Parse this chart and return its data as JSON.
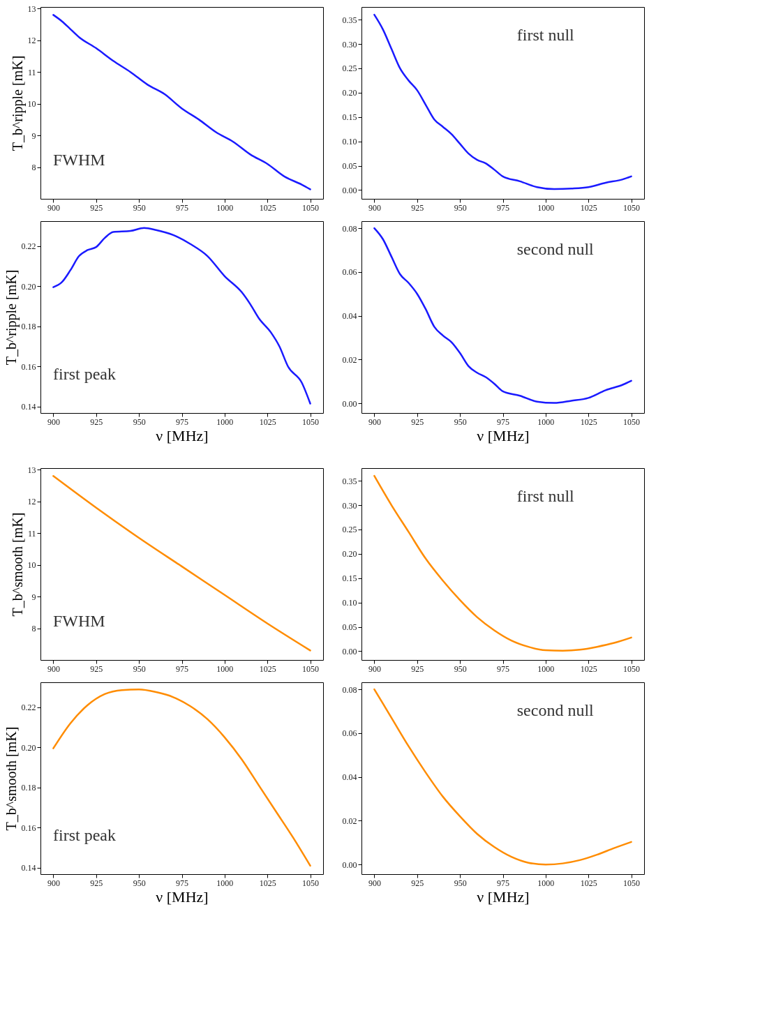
{
  "chart_data": [
    {
      "type": "line",
      "ylabel": "T_b^ripple [mK]",
      "annotations": [
        "FWHM"
      ],
      "x": [
        900,
        905,
        910,
        915,
        925,
        935,
        945,
        955,
        965,
        975,
        985,
        995,
        1005,
        1015,
        1025,
        1035,
        1045,
        1050
      ],
      "series": [
        {
          "color": "#1a1aff",
          "values": [
            12.8,
            12.6,
            12.35,
            12.1,
            11.75,
            11.35,
            11.0,
            10.6,
            10.3,
            9.85,
            9.5,
            9.1,
            8.8,
            8.4,
            8.1,
            7.7,
            7.45,
            7.3
          ]
        }
      ],
      "xlim": [
        892.5,
        1057.5
      ],
      "xticks": [
        900,
        925,
        950,
        975,
        1000,
        1025,
        1050
      ],
      "ylim": [
        7.0,
        13.05
      ],
      "yticks": [
        8,
        9,
        10,
        11,
        12,
        13
      ]
    },
    {
      "type": "line",
      "annotations": [
        "first null"
      ],
      "x": [
        900,
        905,
        910,
        915,
        920,
        925,
        930,
        935,
        940,
        945,
        950,
        955,
        960,
        965,
        970,
        975,
        985,
        995,
        1005,
        1015,
        1025,
        1035,
        1045,
        1050
      ],
      "series": [
        {
          "color": "#1a1aff",
          "values": [
            0.36,
            0.33,
            0.29,
            0.25,
            0.225,
            0.205,
            0.175,
            0.145,
            0.13,
            0.115,
            0.095,
            0.075,
            0.062,
            0.055,
            0.042,
            0.028,
            0.018,
            0.006,
            0.002,
            0.003,
            0.006,
            0.015,
            0.022,
            0.028
          ]
        }
      ],
      "xlim": [
        892.5,
        1057.5
      ],
      "xticks": [
        900,
        925,
        950,
        975,
        1000,
        1025,
        1050
      ],
      "ylim": [
        -0.018,
        0.376
      ],
      "yticks": [
        {
          "value": 0,
          "label": "0.00"
        },
        0.05,
        {
          "value": 0.1,
          "label": "0.10"
        },
        0.15,
        {
          "value": 0.2,
          "label": "0.20"
        },
        0.25,
        {
          "value": 0.3,
          "label": "0.30"
        },
        0.35
      ]
    },
    {
      "type": "line",
      "ylabel": "T_b^ripple [mK]",
      "xlabel": "ν [MHz]",
      "annotations": [
        "first peak"
      ],
      "x": [
        900,
        905,
        910,
        915,
        920,
        925,
        930,
        935,
        945,
        953,
        960,
        970,
        980,
        990,
        1000,
        1010,
        1015,
        1020,
        1027,
        1032,
        1037,
        1045,
        1050
      ],
      "series": [
        {
          "color": "#1a1aff",
          "values": [
            0.1995,
            0.202,
            0.208,
            0.215,
            0.218,
            0.2195,
            0.224,
            0.227,
            0.2275,
            0.229,
            0.228,
            0.2255,
            0.221,
            0.215,
            0.205,
            0.197,
            0.191,
            0.184,
            0.177,
            0.17,
            0.16,
            0.152,
            0.1415
          ]
        }
      ],
      "xlim": [
        892.5,
        1057.5
      ],
      "xticks": [
        900,
        925,
        950,
        975,
        1000,
        1025,
        1050
      ],
      "ylim": [
        0.1368,
        0.2324
      ],
      "yticks": [
        0.14,
        0.16,
        0.18,
        {
          "value": 0.2,
          "label": "0.20"
        },
        0.22
      ]
    },
    {
      "type": "line",
      "xlabel": "ν [MHz]",
      "annotations": [
        "second null"
      ],
      "x": [
        900,
        905,
        910,
        915,
        920,
        925,
        930,
        935,
        940,
        945,
        950,
        955,
        960,
        965,
        970,
        975,
        985,
        995,
        1005,
        1015,
        1025,
        1035,
        1045,
        1050
      ],
      "series": [
        {
          "color": "#1a1aff",
          "values": [
            0.08,
            0.075,
            0.067,
            0.059,
            0.055,
            0.05,
            0.043,
            0.035,
            0.031,
            0.028,
            0.023,
            0.017,
            0.014,
            0.012,
            0.009,
            0.0055,
            0.0035,
            0.0008,
            0.0002,
            0.0012,
            0.0025,
            0.006,
            0.0085,
            0.0103
          ]
        }
      ],
      "xlim": [
        892.5,
        1057.5
      ],
      "xticks": [
        900,
        925,
        950,
        975,
        1000,
        1025,
        1050
      ],
      "ylim": [
        -0.0044,
        0.0832
      ],
      "yticks": [
        {
          "value": 0,
          "label": "0.00"
        },
        0.02,
        0.04,
        0.06,
        0.08
      ]
    },
    {
      "type": "line",
      "ylabel": "T_b^smooth [mK]",
      "annotations": [
        "FWHM"
      ],
      "x": [
        900,
        925,
        950,
        975,
        1000,
        1025,
        1050
      ],
      "series": [
        {
          "color": "#ff8c00",
          "values": [
            12.8,
            11.8,
            10.85,
            9.95,
            9.05,
            8.15,
            7.3
          ]
        }
      ],
      "xlim": [
        892.5,
        1057.5
      ],
      "xticks": [
        900,
        925,
        950,
        975,
        1000,
        1025,
        1050
      ],
      "ylim": [
        7.0,
        13.05
      ],
      "yticks": [
        8,
        9,
        10,
        11,
        12,
        13
      ]
    },
    {
      "type": "line",
      "annotations": [
        "first null"
      ],
      "x": [
        900,
        910,
        920,
        930,
        940,
        950,
        960,
        970,
        980,
        990,
        1000,
        1010,
        1020,
        1030,
        1040,
        1050
      ],
      "series": [
        {
          "color": "#ff8c00",
          "values": [
            0.36,
            0.3,
            0.245,
            0.19,
            0.145,
            0.105,
            0.07,
            0.043,
            0.022,
            0.009,
            0.002,
            0.001,
            0.003,
            0.009,
            0.017,
            0.028
          ]
        }
      ],
      "xlim": [
        892.5,
        1057.5
      ],
      "xticks": [
        900,
        925,
        950,
        975,
        1000,
        1025,
        1050
      ],
      "ylim": [
        -0.018,
        0.376
      ],
      "yticks": [
        {
          "value": 0,
          "label": "0.00"
        },
        0.05,
        {
          "value": 0.1,
          "label": "0.10"
        },
        0.15,
        {
          "value": 0.2,
          "label": "0.20"
        },
        0.25,
        {
          "value": 0.3,
          "label": "0.30"
        },
        0.35
      ]
    },
    {
      "type": "line",
      "ylabel": "T_b^smooth [mK]",
      "xlabel": "ν [MHz]",
      "annotations": [
        "first peak"
      ],
      "x": [
        900,
        910,
        920,
        930,
        940,
        950,
        960,
        970,
        980,
        990,
        1000,
        1010,
        1020,
        1030,
        1040,
        1050
      ],
      "series": [
        {
          "color": "#ff8c00",
          "values": [
            0.1995,
            0.212,
            0.221,
            0.2265,
            0.2285,
            0.2288,
            0.2275,
            0.225,
            0.2205,
            0.214,
            0.205,
            0.194,
            0.181,
            0.168,
            0.155,
            0.141
          ]
        }
      ],
      "xlim": [
        892.5,
        1057.5
      ],
      "xticks": [
        900,
        925,
        950,
        975,
        1000,
        1025,
        1050
      ],
      "ylim": [
        0.1368,
        0.2324
      ],
      "yticks": [
        0.14,
        0.16,
        0.18,
        {
          "value": 0.2,
          "label": "0.20"
        },
        0.22
      ]
    },
    {
      "type": "line",
      "xlabel": "ν [MHz]",
      "annotations": [
        "second null"
      ],
      "x": [
        900,
        910,
        920,
        930,
        940,
        950,
        960,
        970,
        980,
        990,
        1000,
        1010,
        1020,
        1030,
        1040,
        1050
      ],
      "series": [
        {
          "color": "#ff8c00",
          "values": [
            0.08,
            0.067,
            0.054,
            0.042,
            0.031,
            0.022,
            0.014,
            0.008,
            0.0035,
            0.0008,
            0.0,
            0.0005,
            0.002,
            0.0045,
            0.0075,
            0.0103
          ]
        }
      ],
      "xlim": [
        892.5,
        1057.5
      ],
      "xticks": [
        900,
        925,
        950,
        975,
        1000,
        1025,
        1050
      ],
      "ylim": [
        -0.0044,
        0.0832
      ],
      "yticks": [
        {
          "value": 0,
          "label": "0.00"
        },
        0.02,
        0.04,
        0.06,
        0.08
      ]
    }
  ]
}
